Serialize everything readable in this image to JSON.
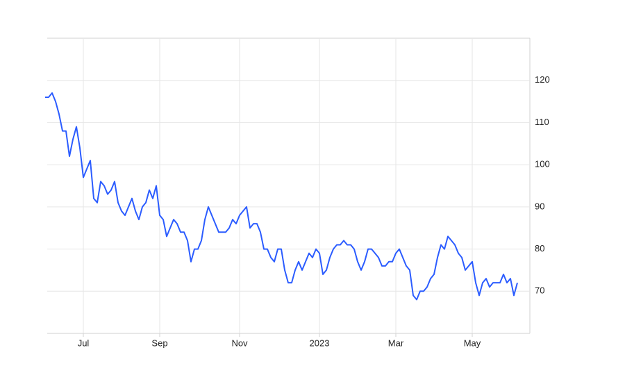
{
  "chart_data": {
    "type": "line",
    "categories": [
      null,
      null,
      null,
      null,
      null,
      null,
      null,
      null,
      null,
      null,
      null,
      "Jul",
      null,
      null,
      null,
      null,
      null,
      null,
      null,
      null,
      null,
      null,
      null,
      null,
      null,
      null,
      null,
      null,
      null,
      null,
      null,
      null,
      null,
      "Sep",
      null,
      null,
      null,
      null,
      null,
      null,
      null,
      null,
      null,
      null,
      null,
      null,
      null,
      null,
      null,
      null,
      null,
      null,
      null,
      null,
      null,
      null,
      "Nov",
      null,
      null,
      null,
      null,
      null,
      null,
      null,
      null,
      null,
      null,
      null,
      null,
      null,
      null,
      null,
      null,
      null,
      null,
      null,
      null,
      null,
      null,
      "2023",
      null,
      null,
      null,
      null,
      null,
      null,
      null,
      null,
      null,
      null,
      null,
      null,
      null,
      null,
      null,
      null,
      null,
      null,
      null,
      null,
      null,
      "Mar",
      null,
      null,
      null,
      null,
      null,
      null,
      null,
      null,
      null,
      null,
      null,
      null,
      null,
      null,
      null,
      null,
      null,
      null,
      null,
      null,
      null,
      "May",
      null,
      null,
      null,
      null,
      null,
      null,
      null,
      null,
      null,
      null,
      null,
      null,
      null
    ],
    "series": [
      {
        "color": "#2b5cff",
        "values": [
          116,
          116,
          117,
          115,
          112,
          108,
          108,
          102,
          106,
          109,
          104,
          97,
          99,
          101,
          92,
          91,
          96,
          95,
          93,
          94,
          96,
          91,
          89,
          88,
          90,
          92,
          89,
          87,
          90,
          91,
          94,
          92,
          95,
          88,
          87,
          83,
          85,
          87,
          86,
          84,
          84,
          82,
          77,
          80,
          80,
          82,
          87,
          90,
          88,
          86,
          84,
          84,
          84,
          85,
          87,
          86,
          88,
          89,
          90,
          85,
          86,
          86,
          84,
          80,
          80,
          78,
          77,
          80,
          80,
          75,
          72,
          72,
          75,
          77,
          75,
          77,
          79,
          78,
          80,
          79,
          74,
          75,
          78,
          80,
          81,
          81,
          82,
          81,
          81,
          80,
          77,
          75,
          77,
          80,
          80,
          79,
          78,
          76,
          76,
          77,
          77,
          79,
          80,
          78,
          76,
          75,
          69,
          68,
          70,
          70,
          71,
          73,
          74,
          78,
          81,
          80,
          83,
          82,
          81,
          79,
          78,
          75,
          76,
          77,
          72,
          69,
          72,
          73,
          71,
          72,
          72,
          72,
          74,
          72,
          73,
          69,
          72
        ]
      }
    ],
    "ylim": [
      60,
      130
    ],
    "yticks": [
      70,
      80,
      90,
      100,
      110,
      120
    ],
    "grid": true
  }
}
